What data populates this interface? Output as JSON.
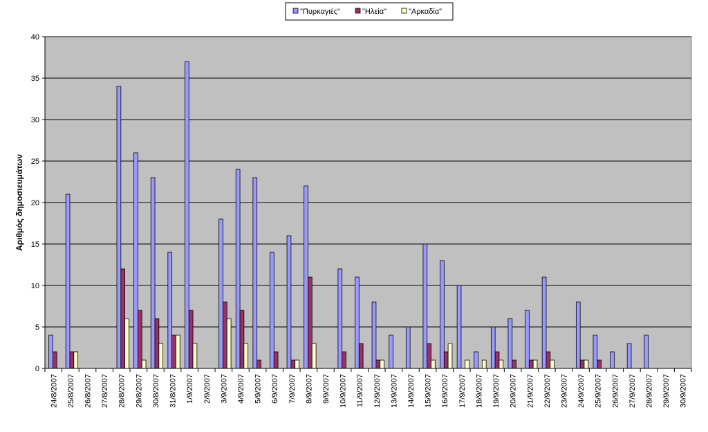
{
  "chart_data": {
    "type": "bar",
    "title": "",
    "xlabel": "",
    "ylabel": "Αριθμός δημοσιευμάτων",
    "ylim": [
      0,
      40
    ],
    "yticks": [
      0,
      5,
      10,
      15,
      20,
      25,
      30,
      35,
      40
    ],
    "grid": true,
    "legend_position": "top-center",
    "categories": [
      "24/8/2007",
      "25/8/2007",
      "26/8/2007",
      "27/8/2007",
      "28/8/2007",
      "29/8/2007",
      "30/8/2007",
      "31/8/2007",
      "1/9/2007",
      "2/9/2007",
      "3/9/2007",
      "4/9/2007",
      "5/9/2007",
      "6/9/2007",
      "7/9/2007",
      "8/9/2007",
      "9/9/2007",
      "10/9/2007",
      "11/9/2007",
      "12/9/2007",
      "13/9/2007",
      "14/9/2007",
      "15/9/2007",
      "16/9/2007",
      "17/9/2007",
      "18/9/2007",
      "19/9/2007",
      "20/9/2007",
      "21/9/2007",
      "22/9/2007",
      "23/9/2007",
      "24/9/2007",
      "25/9/2007",
      "26/9/2007",
      "27/9/2007",
      "28/9/2007",
      "29/9/2007",
      "30/9/2007"
    ],
    "series": [
      {
        "name": "\"Πυρκαγιές\"",
        "color": "#9999ff",
        "values": [
          4,
          21,
          0,
          0,
          34,
          26,
          23,
          14,
          37,
          0,
          18,
          24,
          23,
          14,
          16,
          22,
          0,
          12,
          11,
          8,
          4,
          5,
          15,
          13,
          10,
          2,
          5,
          6,
          7,
          11,
          0,
          8,
          4,
          2,
          3,
          4,
          0,
          0
        ]
      },
      {
        "name": "\"Ηλεία\"",
        "color": "#993366",
        "values": [
          2,
          2,
          0,
          0,
          12,
          7,
          6,
          4,
          7,
          0,
          8,
          7,
          1,
          2,
          1,
          11,
          0,
          2,
          3,
          1,
          0,
          0,
          3,
          2,
          0,
          0,
          2,
          1,
          1,
          2,
          0,
          1,
          1,
          0,
          0,
          0,
          0,
          0
        ]
      },
      {
        "name": "\"Αρκαδία\"",
        "color": "#ffffcc",
        "values": [
          0,
          2,
          0,
          0,
          6,
          1,
          3,
          4,
          3,
          0,
          6,
          3,
          0,
          0,
          1,
          3,
          0,
          0,
          0,
          1,
          0,
          0,
          1,
          3,
          1,
          1,
          1,
          0,
          1,
          1,
          0,
          1,
          0,
          0,
          0,
          0,
          0,
          0
        ]
      }
    ]
  }
}
